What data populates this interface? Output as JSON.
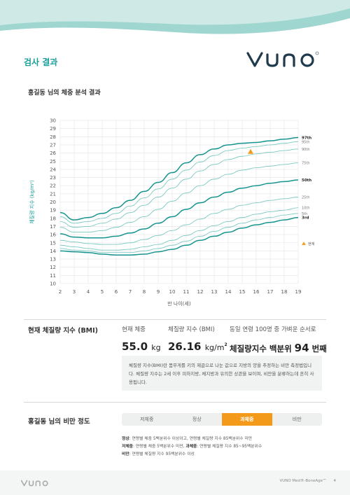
{
  "header": {
    "section_title": "검사 결과",
    "brand": "VUNO"
  },
  "chart_title": "홍길동 님의 체중 분석 결과",
  "chart_data": {
    "type": "line",
    "xlabel": "만 나이(세)",
    "ylabel": "체질량 지수 (kg/m²)",
    "xlim": [
      2,
      19
    ],
    "ylim": [
      10,
      30
    ],
    "x_ticks": [
      2,
      3,
      4,
      5,
      6,
      7,
      8,
      9,
      10,
      11,
      12,
      13,
      14,
      15,
      16,
      17,
      18,
      19
    ],
    "y_ticks": [
      10,
      11,
      12,
      13,
      14,
      15,
      16,
      17,
      18,
      19,
      20,
      21,
      22,
      23,
      24,
      25,
      26,
      27,
      28,
      29,
      30
    ],
    "x": [
      2,
      3,
      4,
      5,
      6,
      7,
      8,
      9,
      10,
      11,
      12,
      13,
      14,
      15,
      16,
      17,
      18,
      19
    ],
    "series": [
      {
        "name": "97th",
        "values": [
          18.7,
          17.8,
          18.1,
          18.6,
          19.3,
          20.2,
          21.3,
          22.4,
          23.6,
          24.8,
          25.8,
          26.5,
          27.0,
          27.2,
          27.3,
          27.5,
          27.7,
          27.9
        ]
      },
      {
        "name": "95th",
        "values": [
          18.2,
          17.4,
          17.6,
          18.0,
          18.6,
          19.5,
          20.5,
          21.6,
          22.8,
          23.9,
          24.9,
          25.7,
          26.3,
          26.6,
          26.8,
          27.0,
          27.2,
          27.4
        ]
      },
      {
        "name": "90th",
        "values": [
          17.6,
          16.9,
          17.0,
          17.4,
          17.9,
          18.7,
          19.6,
          20.6,
          21.7,
          22.8,
          23.8,
          24.6,
          25.2,
          25.6,
          25.9,
          26.1,
          26.3,
          26.5
        ]
      },
      {
        "name": "75th",
        "values": [
          16.9,
          16.3,
          16.3,
          16.5,
          16.9,
          17.5,
          18.2,
          19.1,
          20.1,
          21.1,
          22.0,
          22.8,
          23.4,
          23.9,
          24.2,
          24.4,
          24.6,
          24.8
        ]
      },
      {
        "name": "50th",
        "values": [
          16.1,
          15.7,
          15.6,
          15.6,
          15.8,
          16.2,
          16.7,
          17.4,
          18.2,
          19.1,
          19.9,
          20.6,
          21.2,
          21.7,
          22.0,
          22.3,
          22.5,
          22.7
        ]
      },
      {
        "name": "25th",
        "values": [
          15.3,
          15.1,
          14.9,
          14.8,
          14.8,
          15.0,
          15.4,
          15.9,
          16.5,
          17.2,
          17.9,
          18.6,
          19.1,
          19.6,
          19.9,
          20.2,
          20.4,
          20.6
        ]
      },
      {
        "name": "10th",
        "values": [
          14.7,
          14.5,
          14.3,
          14.1,
          14.1,
          14.2,
          14.5,
          14.8,
          15.3,
          15.9,
          16.5,
          17.1,
          17.6,
          18.1,
          18.5,
          18.8,
          19.0,
          19.3
        ]
      },
      {
        "name": "5th",
        "values": [
          14.3,
          14.1,
          14.0,
          13.8,
          13.8,
          13.8,
          14.0,
          14.3,
          14.7,
          15.2,
          15.8,
          16.4,
          16.9,
          17.4,
          17.8,
          18.1,
          18.4,
          18.6
        ]
      },
      {
        "name": "3rd",
        "values": [
          14.0,
          13.9,
          13.8,
          13.6,
          13.5,
          13.5,
          13.6,
          13.9,
          14.2,
          14.7,
          15.3,
          15.8,
          16.3,
          16.8,
          17.2,
          17.5,
          17.8,
          18.1
        ]
      }
    ],
    "marker": {
      "x": 15.6,
      "y": 26.16,
      "label": "현재",
      "color": "#f49a1a"
    },
    "grid": true,
    "legend": "right"
  },
  "bmi_section": {
    "label": "현재 체질량 지수 (BMI)",
    "weight_label": "현재 체중",
    "weight_value": "55.0",
    "weight_unit": "kg",
    "bmi_label": "체질량 지수 (BMI)",
    "bmi_value": "26.16",
    "bmi_unit": "kg/m",
    "bmi_unit_sup": "2",
    "rank_label": "동일 연령 100명 중 가벼운 순서로",
    "rank_prefix": "체질량지수 백분위",
    "rank_value": "94",
    "rank_suffix": "번째"
  },
  "note": "체질량 지수(BMI)란 몸무게를 키의 제곱으로 나눈 값으로 지방의 양을 추정하는 비만 측정법입니다. 체질량 지수는 2세 이후 피하지방, 체지방과 유의한 상관을 보이며, 비만을 분류하는데 흔히 사용됩니다.",
  "obesity": {
    "label": "홍길동 님의 비만 정도",
    "segments": [
      "저체중",
      "정상",
      "과체중",
      "비만"
    ],
    "active_index": 2
  },
  "definitions": [
    {
      "term": "정상",
      "text": ": 연령별 체중 5백분위수 이상이고, 연령별 체질량 지수 85백분위수 미만"
    },
    {
      "term": "저체중",
      "text": ": 연령별 체중 5백분위수 미만,"
    },
    {
      "term": "과체중",
      "text": ": 연령별 체질량 지수 85~95백분위수"
    },
    {
      "term": "비만",
      "text": ": 연령별 체질량 지수 95백분위수 이상"
    }
  ],
  "footer": {
    "brand": "VUNO",
    "product": "VUNO Med®-BoneAge™",
    "page": "4"
  },
  "colors": {
    "accent": "#1a9e9a",
    "dark_line": "#17948f",
    "light_line": "#7cc9c2",
    "marker": "#f49a1a"
  }
}
